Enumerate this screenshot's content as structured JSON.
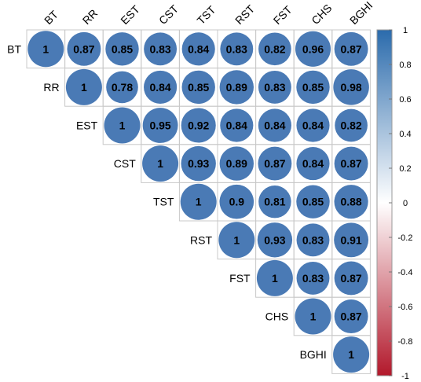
{
  "chart_data": {
    "type": "heatmap",
    "variables": [
      "BT",
      "RR",
      "EST",
      "CST",
      "TST",
      "RST",
      "FST",
      "CHS",
      "BGHI"
    ],
    "matrix_upper": [
      [
        1,
        0.87,
        0.85,
        0.83,
        0.84,
        0.83,
        0.82,
        0.96,
        0.87
      ],
      [
        1,
        0.78,
        0.84,
        0.85,
        0.89,
        0.83,
        0.85,
        0.98
      ],
      [
        1,
        0.95,
        0.92,
        0.84,
        0.84,
        0.84,
        0.82
      ],
      [
        1,
        0.93,
        0.89,
        0.87,
        0.84,
        0.87
      ],
      [
        1,
        0.9,
        0.81,
        0.85,
        0.88
      ],
      [
        1,
        0.93,
        0.83,
        0.91
      ],
      [
        1,
        0.83,
        0.87
      ],
      [
        1,
        0.87
      ],
      [
        1
      ]
    ],
    "value_labels": [
      [
        "1",
        "0.87",
        "0.85",
        "0.83",
        "0.84",
        "0.83",
        "0.82",
        "0.96",
        "0.87"
      ],
      [
        "1",
        "0.78",
        "0.84",
        "0.85",
        "0.89",
        "0.83",
        "0.85",
        "0.98"
      ],
      [
        "1",
        "0.95",
        "0.92",
        "0.84",
        "0.84",
        "0.84",
        "0.82"
      ],
      [
        "1",
        "0.93",
        "0.89",
        "0.87",
        "0.84",
        "0.87"
      ],
      [
        "1",
        "0.9",
        "0.81",
        "0.85",
        "0.88"
      ],
      [
        "1",
        "0.93",
        "0.83",
        "0.91"
      ],
      [
        "1",
        "0.83",
        "0.87"
      ],
      [
        "1",
        "0.87"
      ],
      [
        "1"
      ]
    ],
    "triangle": "upper",
    "cell_style": "circle",
    "colorbar": {
      "range": [
        -1,
        1
      ],
      "ticks": [
        "1",
        "0.8",
        "0.6",
        "0.4",
        "0.2",
        "0",
        "-0.2",
        "-0.4",
        "-0.6",
        "-0.8",
        "-1"
      ],
      "colors": {
        "negative": "#b2182b",
        "zero": "#ffffff",
        "positive": "#2b6bac"
      },
      "placement": "right"
    },
    "circle_color": "#4a7ab5",
    "grid": true
  }
}
